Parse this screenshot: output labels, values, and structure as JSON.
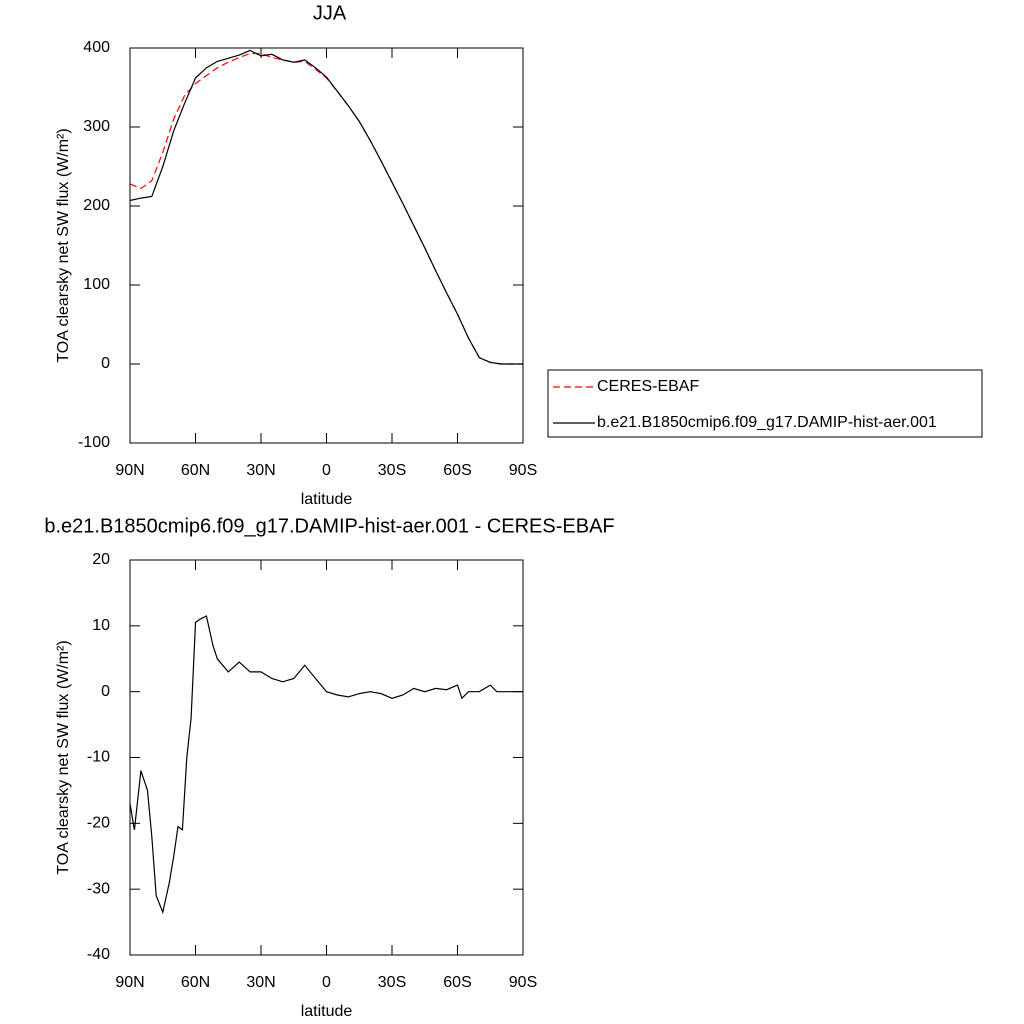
{
  "chart_data": [
    {
      "type": "line",
      "title": "JJA",
      "xlabel": "latitude",
      "ylabel": "TOA clearsky net SW flux (W/m²)",
      "x": [
        90,
        85,
        80,
        75,
        70,
        65,
        60,
        55,
        50,
        45,
        40,
        35,
        30,
        25,
        20,
        15,
        10,
        5,
        0,
        -5,
        -10,
        -15,
        -20,
        -25,
        -30,
        -35,
        -40,
        -45,
        -50,
        -55,
        -60,
        -65,
        -70,
        -75,
        -80,
        -85,
        -90
      ],
      "series": [
        {
          "name": "CERES-EBAF",
          "color": "#ff0000",
          "dash": true,
          "values": [
            228,
            222,
            232,
            268,
            310,
            340,
            355,
            365,
            375,
            382,
            388,
            393,
            393,
            388,
            385,
            382,
            383,
            373,
            362,
            345,
            327,
            307,
            283,
            257,
            230,
            203,
            175,
            147,
            118,
            90,
            63,
            33,
            8,
            2,
            0,
            0,
            0
          ]
        },
        {
          "name": "b.e21.B1850cmip6.f09_g17.DAMIP-hist-aer.001",
          "color": "#000000",
          "dash": false,
          "values": [
            207,
            210,
            212,
            250,
            295,
            330,
            362,
            375,
            383,
            387,
            391,
            397,
            390,
            392,
            385,
            382,
            385,
            375,
            363,
            345,
            327,
            307,
            283,
            257,
            230,
            203,
            175,
            147,
            118,
            90,
            63,
            33,
            8,
            2,
            0,
            0,
            0
          ]
        }
      ],
      "xlim": [
        90,
        -90
      ],
      "xticks": [
        {
          "value": 90,
          "label": "90N"
        },
        {
          "value": 60,
          "label": "60N"
        },
        {
          "value": 30,
          "label": "30N"
        },
        0,
        {
          "value": -30,
          "label": "30S"
        },
        {
          "value": -60,
          "label": "60S"
        },
        {
          "value": -90,
          "label": "90S"
        }
      ],
      "ylim": [
        -100,
        400
      ],
      "yticks": [
        -100,
        0,
        100,
        200,
        300,
        400
      ],
      "legend": "right"
    },
    {
      "type": "line",
      "title": "b.e21.B1850cmip6.f09_g17.DAMIP-hist-aer.001 - CERES-EBAF",
      "xlabel": "latitude",
      "ylabel": "TOA clearsky net SW flux (W/m²)",
      "x": [
        90,
        88,
        85,
        82,
        80,
        78,
        75,
        72,
        70,
        68,
        66,
        64,
        62,
        60,
        58,
        55,
        52,
        50,
        45,
        40,
        35,
        30,
        25,
        20,
        15,
        10,
        5,
        0,
        -5,
        -10,
        -15,
        -20,
        -25,
        -30,
        -35,
        -40,
        -45,
        -50,
        -55,
        -60,
        -62,
        -65,
        -70,
        -75,
        -78,
        -80,
        -85,
        -90
      ],
      "series": [
        {
          "color": "#000000",
          "dash": false,
          "values": [
            -17,
            -21,
            -12,
            -15,
            -22,
            -31,
            -33.5,
            -29,
            -25,
            -20.5,
            -21,
            -10,
            -4,
            10.5,
            11,
            11.5,
            7,
            5,
            3,
            4.5,
            3,
            3,
            2,
            1.5,
            2,
            4,
            2,
            0,
            -0.5,
            -0.8,
            -0.3,
            0,
            -0.3,
            -1,
            -0.5,
            0.5,
            0,
            0.5,
            0.3,
            1,
            -1,
            0,
            0,
            1,
            0,
            0,
            0,
            0
          ]
        }
      ],
      "xlim": [
        90,
        -90
      ],
      "xticks": [
        {
          "value": 90,
          "label": "90N"
        },
        {
          "value": 60,
          "label": "60N"
        },
        {
          "value": 30,
          "label": "30N"
        },
        0,
        {
          "value": -30,
          "label": "30S"
        },
        {
          "value": -60,
          "label": "60S"
        },
        {
          "value": -90,
          "label": "90S"
        }
      ],
      "ylim": [
        -40,
        20
      ],
      "yticks": [
        -40,
        -30,
        -20,
        -10,
        0,
        10,
        20
      ]
    }
  ]
}
